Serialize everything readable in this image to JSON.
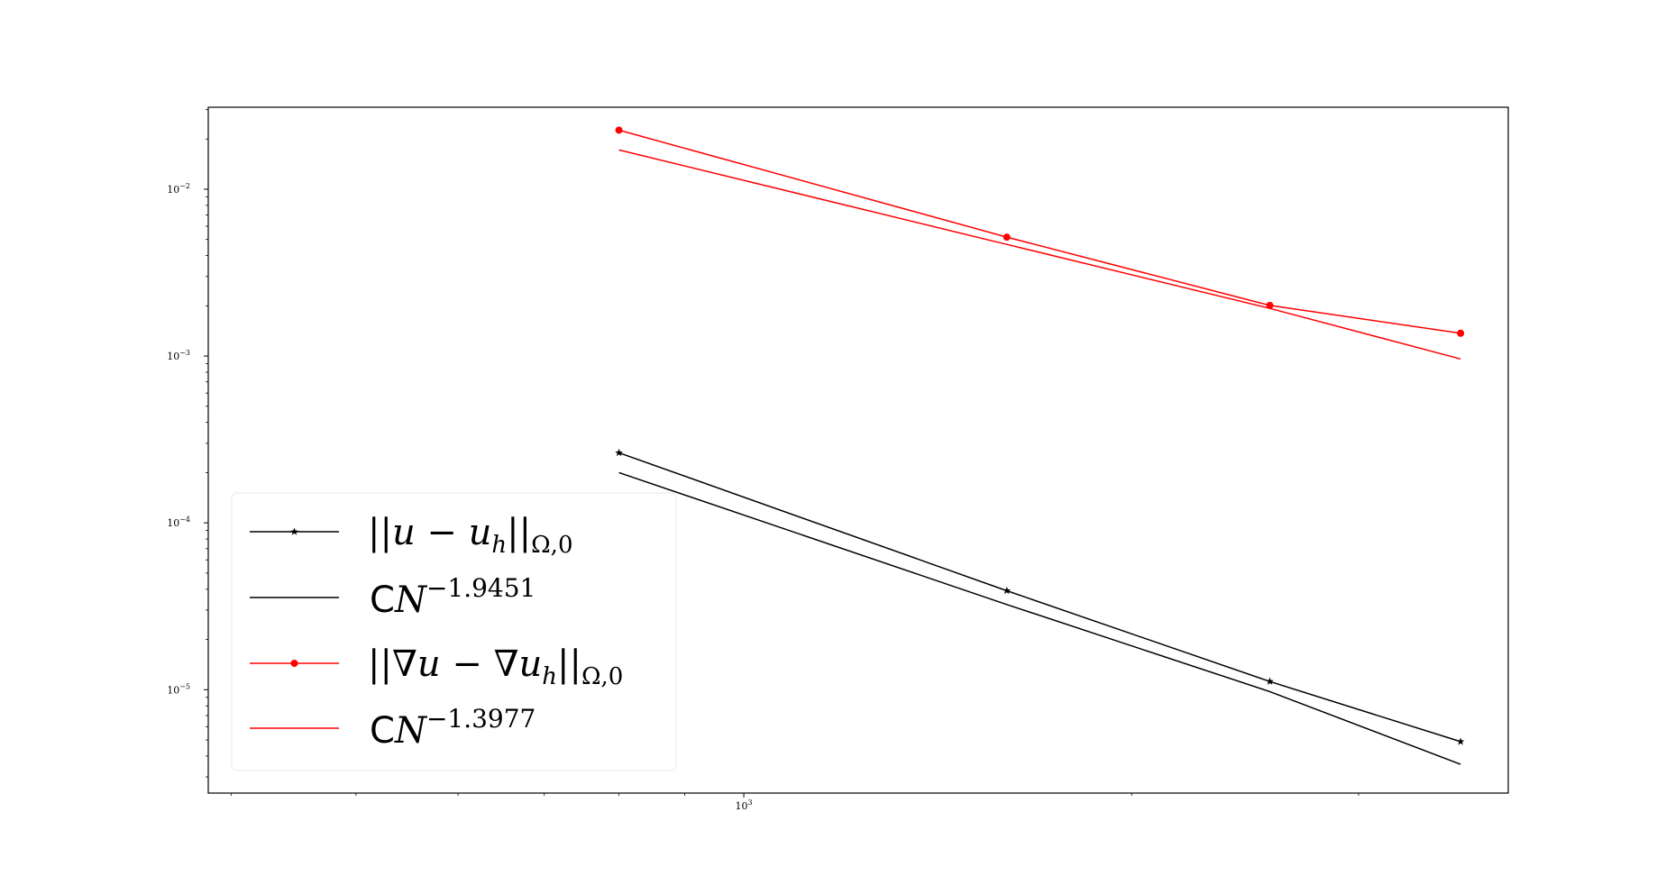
{
  "chart_data": {
    "type": "line",
    "title": "",
    "xlabel": "",
    "ylabel": "",
    "xscale": "log",
    "yscale": "log",
    "xlim": [
      384,
      3920
    ],
    "ylim": [
      2.4e-06,
      0.031
    ],
    "grid": false,
    "legend_placement": "lower-left",
    "x_tick_labels": [
      {
        "value": 1000,
        "base": "10",
        "exp": "3"
      }
    ],
    "y_tick_labels": [
      {
        "value": 1e-05,
        "base": "10",
        "exp": "−5"
      },
      {
        "value": 0.0001,
        "base": "10",
        "exp": "−4"
      },
      {
        "value": 0.001,
        "base": "10",
        "exp": "−3"
      },
      {
        "value": 0.01,
        "base": "10",
        "exp": "−2"
      }
    ],
    "series": [
      {
        "key": "err_l2",
        "legend": {
          "main": "||u − u",
          "sub1": "h",
          "close": "||",
          "sub2": "Ω,0"
        },
        "color": "#000000",
        "marker": "star",
        "x": [
          800,
          1600,
          2560,
          3600
        ],
        "y": [
          0.000263,
          3.92e-05,
          1.12e-05,
          4.88e-06
        ]
      },
      {
        "key": "fit_l2",
        "legend": {
          "c": "C",
          "main": "N",
          "sup": "−1.9451"
        },
        "color": "#000000",
        "marker": "none",
        "x": [
          800,
          1600,
          2560,
          3600
        ],
        "y": [
          0.0002,
          3.24e-05,
          9.74e-06,
          3.57e-06
        ]
      },
      {
        "key": "err_h1",
        "legend": {
          "main": "||∇u − ∇u",
          "sub1": "h",
          "close": "||",
          "sub2": "Ω,0"
        },
        "color": "#ff0000",
        "marker": "circle",
        "x": [
          800,
          1600,
          2560,
          3600
        ],
        "y": [
          0.0226,
          0.00516,
          0.00201,
          0.00137
        ]
      },
      {
        "key": "fit_h1",
        "legend": {
          "c": "C",
          "main": "N",
          "sup": "−1.3977"
        },
        "color": "#ff0000",
        "marker": "none",
        "x": [
          800,
          1600,
          2560,
          3600
        ],
        "y": [
          0.0172,
          0.00467,
          0.00193,
          0.00096
        ]
      }
    ]
  }
}
